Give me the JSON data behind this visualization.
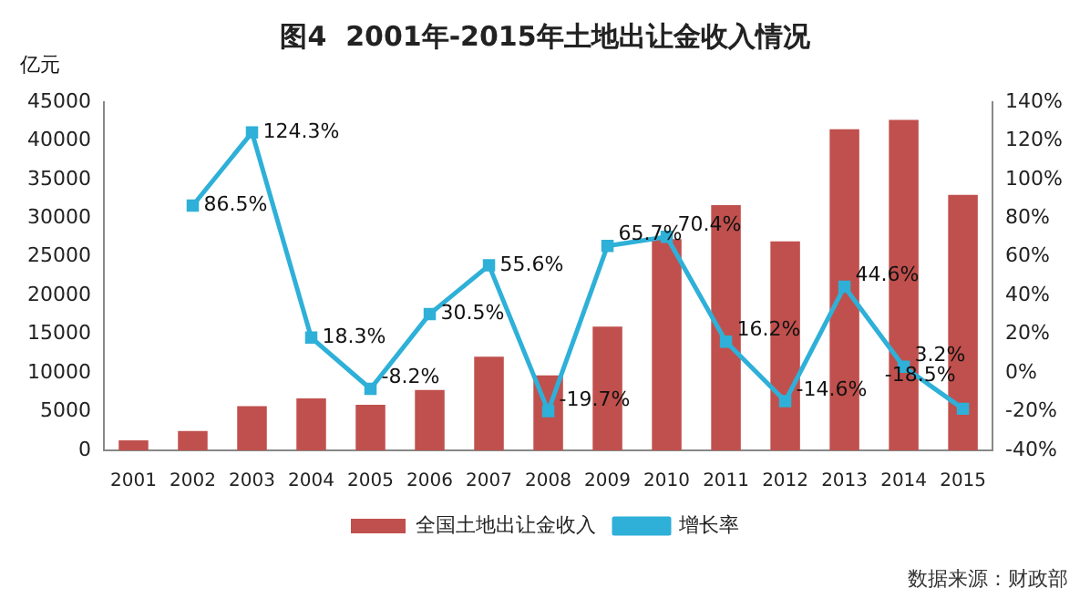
{
  "chart_data": {
    "type": "bar",
    "title": "图4  2001年-2015年土地出让金收入情况",
    "ylabel": "亿元",
    "categories": [
      "2001",
      "2002",
      "2003",
      "2004",
      "2005",
      "2006",
      "2007",
      "2008",
      "2009",
      "2010",
      "2011",
      "2012",
      "2013",
      "2014",
      "2015"
    ],
    "series": [
      {
        "name": "全国土地出让金收入",
        "color": "#c0504d",
        "values": [
          1300,
          2500,
          5700,
          6700,
          5900,
          7800,
          12100,
          9700,
          16000,
          27300,
          31700,
          27000,
          41500,
          42700,
          33000
        ]
      },
      {
        "name": "增长率",
        "type": "line",
        "axis": "y2",
        "color": "#2eb0d8",
        "marker": "square",
        "values": [
          null,
          86.5,
          124.3,
          18.3,
          -8.2,
          30.5,
          55.6,
          -19.7,
          65.7,
          70.4,
          16.2,
          -14.6,
          44.6,
          3.2,
          -18.5
        ],
        "value_labels": [
          null,
          "86.5%",
          "124.3%",
          "18.3%",
          "-8.2%",
          "30.5%",
          "55.6%",
          "-19.7%",
          "65.7%",
          "70.4%",
          "16.2%",
          "-14.6%",
          "44.6%",
          "3.2%",
          "-18.5%"
        ]
      }
    ],
    "ylim": [
      0,
      45000
    ],
    "yticks": [
      0,
      5000,
      10000,
      15000,
      20000,
      25000,
      30000,
      35000,
      40000,
      45000
    ],
    "y2lim": [
      -40,
      140
    ],
    "y2ticks": [
      {
        "value": -40,
        "label": "-40%"
      },
      {
        "value": -20,
        "label": "-20%"
      },
      {
        "value": 0,
        "label": "0%"
      },
      {
        "value": 20,
        "label": "20%"
      },
      {
        "value": 40,
        "label": "40%"
      },
      {
        "value": 60,
        "label": "60%"
      },
      {
        "value": 80,
        "label": "80%"
      },
      {
        "value": 100,
        "label": "100%"
      },
      {
        "value": 120,
        "label": "120%"
      },
      {
        "value": 140,
        "label": "140%"
      }
    ],
    "grid": false,
    "legend": "bottom",
    "annotations": [
      "数据来源：财政部"
    ]
  }
}
